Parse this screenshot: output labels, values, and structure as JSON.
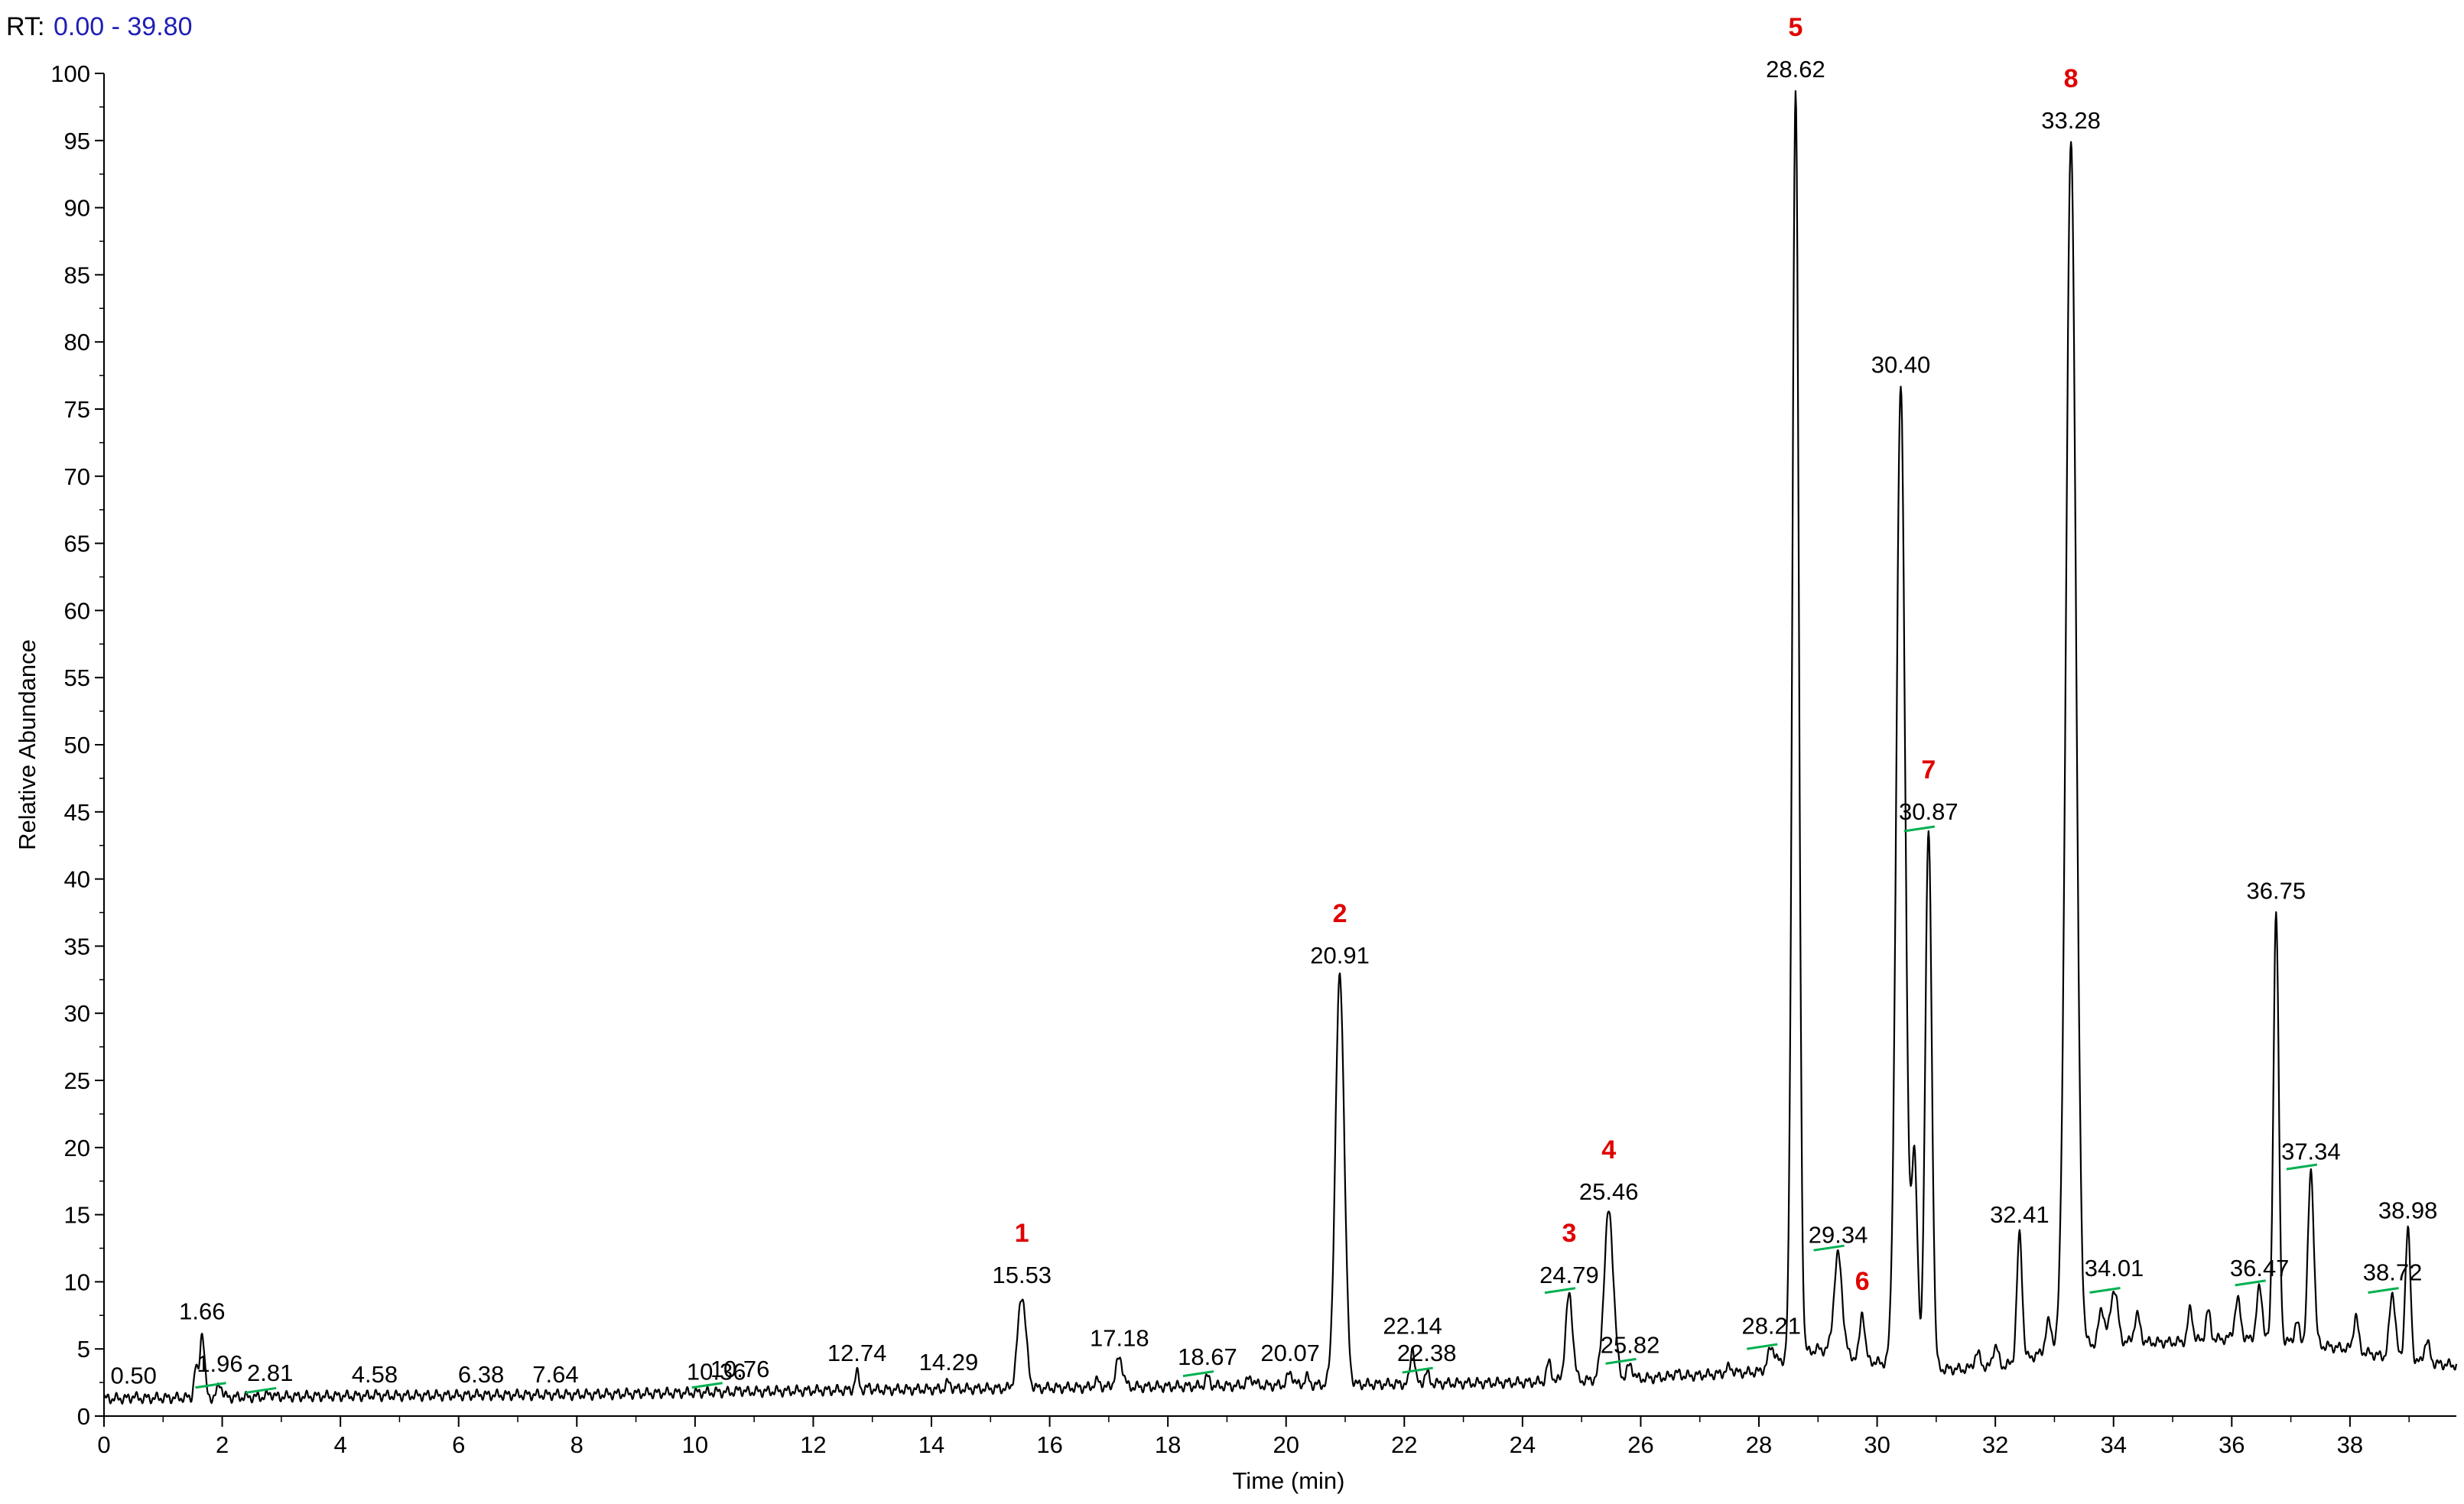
{
  "header": {
    "rt_label": "RT:",
    "rt_range": "0.00 - 39.80"
  },
  "colors": {
    "trace": "#000000",
    "annotation": "#e00000",
    "baseline_marker": "#00b050",
    "header_range": "#1f1fb4"
  },
  "chart_data": {
    "type": "line",
    "xlabel": "Time (min)",
    "ylabel": "Relative Abundance",
    "xlim": [
      0,
      39.8
    ],
    "ylim": [
      0,
      100
    ],
    "x_ticks": [
      "0",
      "2",
      "4",
      "6",
      "8",
      "10",
      "12",
      "14",
      "16",
      "18",
      "20",
      "22",
      "24",
      "26",
      "28",
      "30",
      "32",
      "34",
      "36",
      "38"
    ],
    "y_ticks": [
      "0",
      "5",
      "10",
      "15",
      "20",
      "25",
      "30",
      "35",
      "40",
      "45",
      "50",
      "55",
      "60",
      "65",
      "70",
      "75",
      "80",
      "85",
      "90",
      "95",
      "100"
    ],
    "grid": false,
    "legend": "none",
    "baseline": [
      [
        0,
        1.3
      ],
      [
        4,
        1.5
      ],
      [
        8,
        1.6
      ],
      [
        12,
        1.9
      ],
      [
        16,
        2.1
      ],
      [
        20,
        2.3
      ],
      [
        24,
        2.5
      ],
      [
        26,
        2.8
      ],
      [
        28,
        3.3
      ],
      [
        28.3,
        4
      ],
      [
        29,
        5
      ],
      [
        30,
        4
      ],
      [
        31,
        3.5
      ],
      [
        32,
        3.5
      ],
      [
        33,
        5
      ],
      [
        34,
        5.5
      ],
      [
        35,
        5.5
      ],
      [
        36,
        5.8
      ],
      [
        37,
        5.5
      ],
      [
        38,
        5
      ],
      [
        39,
        4
      ],
      [
        39.8,
        3.8
      ]
    ],
    "peaks": [
      {
        "label": "0.50",
        "rt": 0.5,
        "height": 1.5,
        "width": 0.03
      },
      {
        "label": "1.66",
        "rt": 1.66,
        "height": 6.3,
        "width": 0.04
      },
      {
        "label": "1.96",
        "rt": 1.96,
        "height": 2.4,
        "width": 0.04
      },
      {
        "label": "2.81",
        "rt": 2.81,
        "height": 1.7,
        "width": 0.04
      },
      {
        "label": "4.58",
        "rt": 4.58,
        "height": 1.6,
        "width": 0.04
      },
      {
        "label": "6.38",
        "rt": 6.38,
        "height": 1.6,
        "width": 0.04
      },
      {
        "label": "7.64",
        "rt": 7.64,
        "height": 1.6,
        "width": 0.04
      },
      {
        "label": "10.36",
        "rt": 10.36,
        "height": 1.8,
        "width": 0.04
      },
      {
        "label": "10.76",
        "rt": 10.76,
        "height": 2.0,
        "width": 0.03
      },
      {
        "label": "12.74",
        "rt": 12.74,
        "height": 3.2,
        "width": 0.035
      },
      {
        "label": "14.29",
        "rt": 14.29,
        "height": 2.5,
        "width": 0.04
      },
      {
        "label": "15.53",
        "rt": 15.53,
        "height": 9.0,
        "width": 0.07
      },
      {
        "label": "17.18",
        "rt": 17.18,
        "height": 4.3,
        "width": 0.06
      },
      {
        "label": "18.67",
        "rt": 18.67,
        "height": 2.9,
        "width": 0.04
      },
      {
        "label": "20.07",
        "rt": 20.07,
        "height": 3.2,
        "width": 0.05
      },
      {
        "label": "20.91",
        "rt": 20.91,
        "height": 32.8,
        "width": 0.075
      },
      {
        "label": "22.14",
        "rt": 22.14,
        "height": 5.2,
        "width": 0.035
      },
      {
        "label": "22.38",
        "rt": 22.38,
        "height": 3.2,
        "width": 0.04
      },
      {
        "label": "24.79",
        "rt": 24.79,
        "height": 9.0,
        "width": 0.06
      },
      {
        "label": "25.46",
        "rt": 25.46,
        "height": 15.2,
        "width": 0.08
      },
      {
        "label": "25.82",
        "rt": 25.82,
        "height": 3.8,
        "width": 0.05
      },
      {
        "label": "28.21",
        "rt": 28.21,
        "height": 5.2,
        "width": 0.05
      },
      {
        "label": "28.62",
        "rt": 28.62,
        "height": 98.8,
        "width": 0.055
      },
      {
        "label": "29.34",
        "rt": 29.34,
        "height": 12.0,
        "width": 0.07
      },
      {
        "label": "30.40",
        "rt": 30.4,
        "height": 76.8,
        "width": 0.075
      },
      {
        "label": "30.87",
        "rt": 30.87,
        "height": 43.5,
        "width": 0.055
      },
      {
        "label": "32.41",
        "rt": 32.41,
        "height": 13.5,
        "width": 0.045
      },
      {
        "label": "33.28",
        "rt": 33.28,
        "height": 95.0,
        "width": 0.085
      },
      {
        "label": "34.01",
        "rt": 34.01,
        "height": 9.5,
        "width": 0.06
      },
      {
        "label": "36.47",
        "rt": 36.47,
        "height": 9.5,
        "width": 0.05
      },
      {
        "label": "36.75",
        "rt": 36.75,
        "height": 37.6,
        "width": 0.045
      },
      {
        "label": "37.34",
        "rt": 37.34,
        "height": 18.2,
        "width": 0.05
      },
      {
        "label": "38.72",
        "rt": 38.72,
        "height": 9.2,
        "width": 0.05
      },
      {
        "label": "38.98",
        "rt": 38.98,
        "height": 13.8,
        "width": 0.045
      }
    ],
    "extra_features": [
      {
        "rt": 1.55,
        "height": 3.5,
        "width": 0.03
      },
      {
        "rt": 12.95,
        "height": 2.2,
        "width": 0.03
      },
      {
        "rt": 16.8,
        "height": 2.6,
        "width": 0.05
      },
      {
        "rt": 19.4,
        "height": 2.8,
        "width": 0.06
      },
      {
        "rt": 20.35,
        "height": 2.9,
        "width": 0.04
      },
      {
        "rt": 24.45,
        "height": 4.0,
        "width": 0.04
      },
      {
        "rt": 26.6,
        "height": 3.2,
        "width": 0.06
      },
      {
        "rt": 27.5,
        "height": 3.6,
        "width": 0.06
      },
      {
        "rt": 29.75,
        "height": 7.8,
        "width": 0.04
      },
      {
        "rt": 30.63,
        "height": 19.5,
        "width": 0.05
      },
      {
        "rt": 31.7,
        "height": 4.6,
        "width": 0.06
      },
      {
        "rt": 32.0,
        "height": 5.2,
        "width": 0.05
      },
      {
        "rt": 32.9,
        "height": 7.0,
        "width": 0.05
      },
      {
        "rt": 33.8,
        "height": 8.0,
        "width": 0.05
      },
      {
        "rt": 34.4,
        "height": 7.5,
        "width": 0.05
      },
      {
        "rt": 35.3,
        "height": 8.0,
        "width": 0.04
      },
      {
        "rt": 35.6,
        "height": 7.8,
        "width": 0.04
      },
      {
        "rt": 36.1,
        "height": 8.6,
        "width": 0.05
      },
      {
        "rt": 37.1,
        "height": 7.0,
        "width": 0.04
      },
      {
        "rt": 38.1,
        "height": 7.5,
        "width": 0.04
      },
      {
        "rt": 39.3,
        "height": 5.5,
        "width": 0.05
      }
    ],
    "baseline_markers": [
      1.96,
      2.81,
      10.36,
      18.67,
      22.38,
      24.79,
      25.82,
      28.21,
      29.34,
      30.87,
      34.01,
      36.47,
      37.34,
      38.72
    ],
    "annotations": [
      {
        "text": "1",
        "rt": 15.53
      },
      {
        "text": "2",
        "rt": 20.91
      },
      {
        "text": "3",
        "rt": 24.79
      },
      {
        "text": "4",
        "rt": 25.46
      },
      {
        "text": "5",
        "rt": 28.62
      },
      {
        "text": "6",
        "rt": 29.75
      },
      {
        "text": "7",
        "rt": 30.87
      },
      {
        "text": "8",
        "rt": 33.28
      }
    ]
  }
}
